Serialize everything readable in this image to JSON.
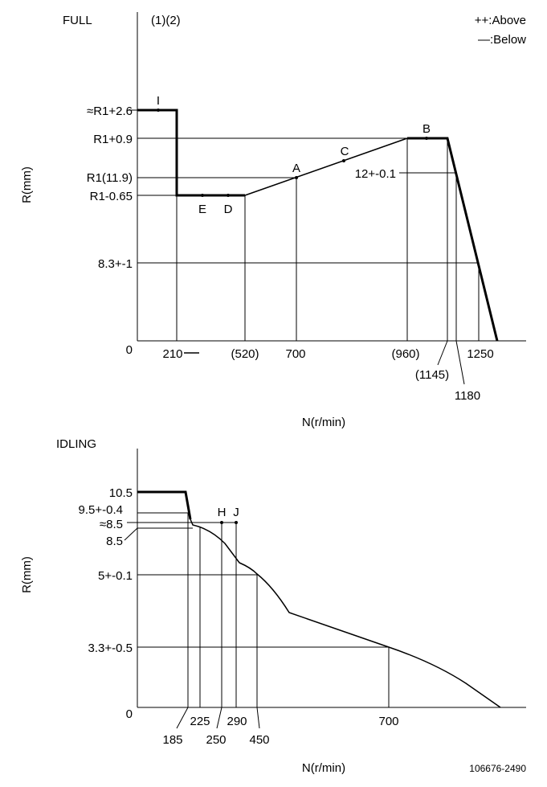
{
  "full": {
    "title": "FULL",
    "note": "(1)(2)",
    "legend": [
      "++:Above",
      "—:Below"
    ],
    "y_label": "R(mm)",
    "x_label": "N(r/min)",
    "y_ticks": [
      "≈R1+2.6",
      "R1+0.9",
      "R1(11.9)",
      "R1-0.65",
      "8.3+-1",
      "0"
    ],
    "x_ticks": [
      "210",
      "(520)",
      "700",
      "(960)",
      "(1145)",
      "1180",
      "1250"
    ],
    "points": [
      "I",
      "E",
      "D",
      "A",
      "C",
      "B"
    ],
    "annotation": "12+-0.1"
  },
  "idling": {
    "title": "IDLING",
    "y_label": "R(mm)",
    "x_label": "N(r/min)",
    "y_ticks": [
      "10.5",
      "9.5+-0.4",
      "≈8.5",
      "8.5",
      "5+-0.1",
      "3.3+-0.5",
      "0"
    ],
    "x_ticks": [
      "185",
      "225",
      "250",
      "290",
      "450",
      "700"
    ],
    "points": [
      "H",
      "J"
    ]
  },
  "footer": "106676-2490"
}
